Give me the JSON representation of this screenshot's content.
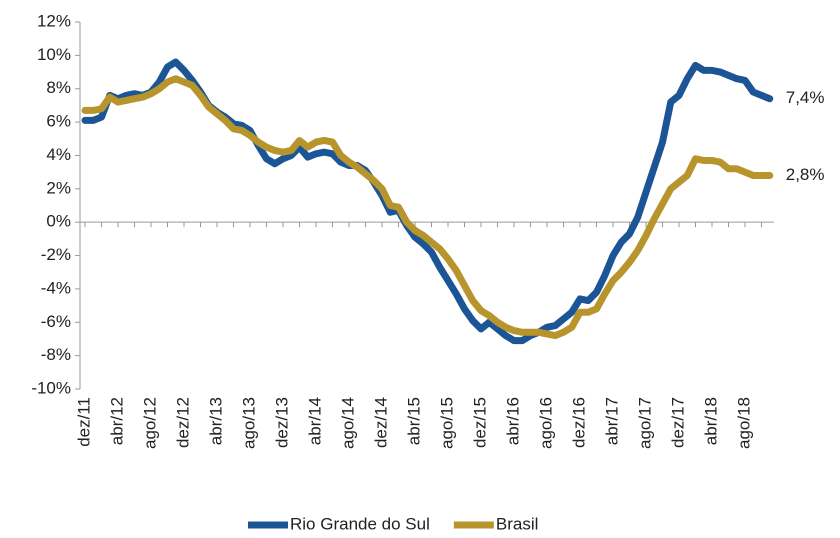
{
  "chart_data": {
    "type": "line",
    "categories": [
      "dez/11",
      null,
      null,
      null,
      "abr/12",
      null,
      null,
      null,
      "ago/12",
      null,
      null,
      null,
      "dez/12",
      null,
      null,
      null,
      "abr/13",
      null,
      null,
      null,
      "ago/13",
      null,
      null,
      null,
      "dez/13",
      null,
      null,
      null,
      "abr/14",
      null,
      null,
      null,
      "ago/14",
      null,
      null,
      null,
      "dez/14",
      null,
      null,
      null,
      "abr/15",
      null,
      null,
      null,
      "ago/15",
      null,
      null,
      null,
      "dez/15",
      null,
      null,
      null,
      "abr/16",
      null,
      null,
      null,
      "ago/16",
      null,
      null,
      null,
      "dez/16",
      null,
      null,
      null,
      "abr/17",
      null,
      null,
      null,
      "ago/17",
      null,
      null,
      null,
      "dez/17",
      null,
      null,
      null,
      "abr/18",
      null,
      null,
      null,
      "ago/18",
      null,
      null,
      null
    ],
    "series": [
      {
        "name": "Rio Grande do Sul",
        "color": "#1c5596",
        "values": [
          6.1,
          6.1,
          6.3,
          7.6,
          7.4,
          7.6,
          7.7,
          7.6,
          7.8,
          8.4,
          9.3,
          9.6,
          9.1,
          8.5,
          7.8,
          7.0,
          6.6,
          6.3,
          5.9,
          5.8,
          5.5,
          4.6,
          3.8,
          3.5,
          3.8,
          4.0,
          4.5,
          3.9,
          4.1,
          4.2,
          4.1,
          3.6,
          3.4,
          3.4,
          3.1,
          2.4,
          1.6,
          0.6,
          0.7,
          -0.2,
          -0.9,
          -1.3,
          -1.8,
          -2.7,
          -3.5,
          -4.3,
          -5.2,
          -5.9,
          -6.4,
          -6.0,
          -6.4,
          -6.8,
          -7.1,
          -7.1,
          -6.8,
          -6.6,
          -6.3,
          -6.2,
          -5.8,
          -5.4,
          -4.6,
          -4.7,
          -4.2,
          -3.2,
          -2.0,
          -1.2,
          -0.7,
          0.3,
          1.8,
          3.3,
          4.8,
          7.2,
          7.6,
          8.6,
          9.4,
          9.1,
          9.1,
          9.0,
          8.8,
          8.6,
          8.5,
          7.8,
          7.6,
          7.4
        ],
        "value_labels": [
          null,
          null,
          null,
          null,
          null,
          null,
          null,
          null,
          null,
          null,
          null,
          null,
          null,
          null,
          null,
          null,
          null,
          null,
          null,
          null,
          null,
          null,
          null,
          null,
          null,
          null,
          null,
          null,
          null,
          null,
          null,
          null,
          null,
          null,
          null,
          null,
          null,
          null,
          null,
          null,
          null,
          null,
          null,
          null,
          null,
          null,
          null,
          null,
          null,
          null,
          null,
          null,
          null,
          null,
          null,
          null,
          null,
          null,
          null,
          null,
          null,
          null,
          null,
          null,
          null,
          null,
          null,
          null,
          null,
          null,
          null,
          null,
          null,
          null,
          null,
          null,
          null,
          null,
          null,
          null,
          null,
          null,
          null,
          "7,4%"
        ]
      },
      {
        "name": "Brasil",
        "color": "#b8952c",
        "values": [
          6.7,
          6.7,
          6.8,
          7.5,
          7.2,
          7.3,
          7.4,
          7.5,
          7.7,
          8.0,
          8.4,
          8.6,
          8.4,
          8.2,
          7.6,
          6.9,
          6.5,
          6.1,
          5.6,
          5.5,
          5.2,
          4.8,
          4.5,
          4.3,
          4.2,
          4.3,
          4.9,
          4.5,
          4.8,
          4.9,
          4.8,
          4.0,
          3.6,
          3.3,
          2.9,
          2.5,
          2.0,
          1.0,
          0.9,
          0.0,
          -0.5,
          -0.8,
          -1.2,
          -1.6,
          -2.2,
          -2.9,
          -3.8,
          -4.7,
          -5.3,
          -5.6,
          -6.0,
          -6.3,
          -6.5,
          -6.6,
          -6.6,
          -6.6,
          -6.7,
          -6.8,
          -6.6,
          -6.3,
          -5.4,
          -5.4,
          -5.2,
          -4.3,
          -3.5,
          -3.0,
          -2.4,
          -1.7,
          -0.8,
          0.2,
          1.1,
          2.0,
          2.4,
          2.8,
          3.8,
          3.7,
          3.7,
          3.6,
          3.2,
          3.2,
          3.0,
          2.8,
          2.8,
          2.8
        ],
        "value_labels": [
          null,
          null,
          null,
          null,
          null,
          null,
          null,
          null,
          null,
          null,
          null,
          null,
          null,
          null,
          null,
          null,
          null,
          null,
          null,
          null,
          null,
          null,
          null,
          null,
          null,
          null,
          null,
          null,
          null,
          null,
          null,
          null,
          null,
          null,
          null,
          null,
          null,
          null,
          null,
          null,
          null,
          null,
          null,
          null,
          null,
          null,
          null,
          null,
          null,
          null,
          null,
          null,
          null,
          null,
          null,
          null,
          null,
          null,
          null,
          null,
          null,
          null,
          null,
          null,
          null,
          null,
          null,
          null,
          null,
          null,
          null,
          null,
          null,
          null,
          null,
          null,
          null,
          null,
          null,
          null,
          null,
          null,
          null,
          "2,8%"
        ]
      }
    ],
    "ylim": [
      -10,
      12
    ],
    "yticks": [
      {
        "value": -10,
        "label": "-10%"
      },
      {
        "value": -8,
        "label": "-8%"
      },
      {
        "value": -6,
        "label": "-6%"
      },
      {
        "value": -4,
        "label": "-4%"
      },
      {
        "value": -2,
        "label": "-2%"
      },
      {
        "value": 0,
        "label": "0%"
      },
      {
        "value": 2,
        "label": "2%"
      },
      {
        "value": 4,
        "label": "4%"
      },
      {
        "value": 6,
        "label": "6%"
      },
      {
        "value": 8,
        "label": "8%"
      },
      {
        "value": 10,
        "label": "10%"
      },
      {
        "value": 12,
        "label": "12%"
      }
    ],
    "grid": false,
    "legend": "bottom"
  }
}
